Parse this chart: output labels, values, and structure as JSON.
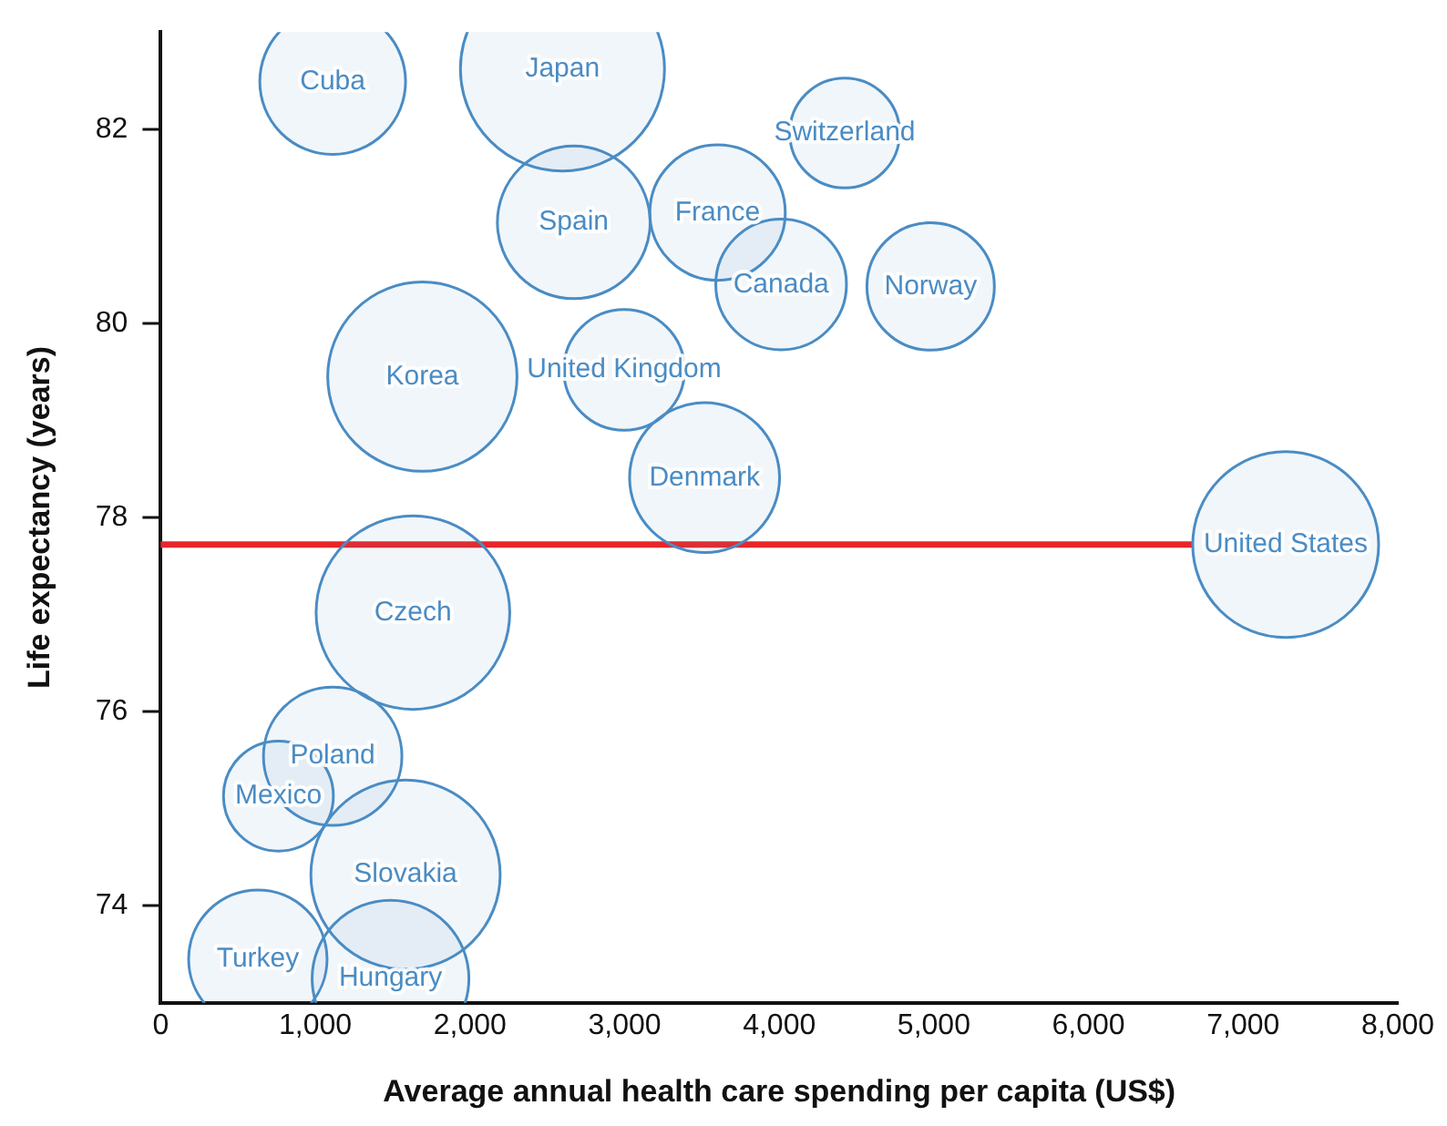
{
  "chart_data": {
    "type": "bubble",
    "xlabel": "Average annual health care spending per capita (US$)",
    "ylabel": "Life expectancy (years)",
    "xlim": [
      0,
      8000
    ],
    "xticks": [
      0,
      {
        "value": 1000,
        "label": "1,000"
      },
      {
        "value": 2000,
        "label": "2,000"
      },
      {
        "value": 3000,
        "label": "3,000"
      },
      {
        "value": 4000,
        "label": "4,000"
      },
      {
        "value": 5000,
        "label": "5,000"
      },
      {
        "value": 6000,
        "label": "6,000"
      },
      {
        "value": 7000,
        "label": "7,000"
      },
      {
        "value": 8000,
        "label": "8,000"
      }
    ],
    "ylim": [
      73,
      83
    ],
    "yticks": [
      74,
      76,
      78,
      80,
      82
    ],
    "grid": false,
    "legend": false,
    "ref_lines": [
      {
        "axis": "y",
        "value": 77.72,
        "color": "#e8262a"
      }
    ],
    "series": [
      {
        "name": "Cuba",
        "color": "#4a8cc4",
        "x": [
          1112
        ],
        "values": [
          82.49
        ],
        "sizes": [
          0.51
        ]
      },
      {
        "name": "Japan",
        "color": "#4a8cc4",
        "x": [
          2598
        ],
        "values": [
          82.62
        ],
        "sizes": [
          1
        ]
      },
      {
        "name": "Switzerland",
        "color": "#4a8cc4",
        "x": [
          4423
        ],
        "values": [
          81.96
        ],
        "sizes": [
          0.29
        ]
      },
      {
        "name": "Spain",
        "color": "#4a8cc4",
        "x": [
          2671
        ],
        "values": [
          81.04
        ],
        "sizes": [
          0.56
        ]
      },
      {
        "name": "France",
        "color": "#4a8cc4",
        "x": [
          3601
        ],
        "values": [
          81.14
        ],
        "sizes": [
          0.44
        ]
      },
      {
        "name": "Canada",
        "color": "#4a8cc4",
        "x": [
          4012
        ],
        "values": [
          80.4
        ],
        "sizes": [
          0.41
        ]
      },
      {
        "name": "Norway",
        "color": "#4a8cc4",
        "x": [
          4979
        ],
        "values": [
          80.38
        ],
        "sizes": [
          0.39
        ]
      },
      {
        "name": "Korea",
        "color": "#4a8cc4",
        "x": [
          1692
        ],
        "values": [
          79.45
        ],
        "sizes": [
          0.86
        ]
      },
      {
        "name": "United Kingdom",
        "color": "#4a8cc4",
        "x": [
          2997
        ],
        "values": [
          79.52
        ],
        "sizes": [
          0.35
        ]
      },
      {
        "name": "Denmark",
        "color": "#4a8cc4",
        "x": [
          3517
        ],
        "values": [
          78.41
        ],
        "sizes": [
          0.54
        ]
      },
      {
        "name": "United States",
        "color": "#4a8cc4",
        "x": [
          7275
        ],
        "values": [
          77.72
        ],
        "sizes": [
          0.83
        ]
      },
      {
        "name": "Czech",
        "color": "#4a8cc4",
        "x": [
          1631
        ],
        "values": [
          77.02
        ],
        "sizes": [
          0.9
        ]
      },
      {
        "name": "Poland",
        "color": "#4a8cc4",
        "x": [
          1112
        ],
        "values": [
          75.54
        ],
        "sizes": [
          0.46
        ]
      },
      {
        "name": "Mexico",
        "color": "#4a8cc4",
        "x": [
          761
        ],
        "values": [
          75.13
        ],
        "sizes": [
          0.29
        ]
      },
      {
        "name": "Slovakia",
        "color": "#4a8cc4",
        "x": [
          1583
        ],
        "values": [
          74.32
        ],
        "sizes": [
          0.86
        ]
      },
      {
        "name": "Turkey",
        "color": "#4a8cc4",
        "x": [
          628
        ],
        "values": [
          73.45
        ],
        "sizes": [
          0.46
        ]
      },
      {
        "name": "Hungary",
        "color": "#4a8cc4",
        "x": [
          1486
        ],
        "values": [
          73.25
        ],
        "sizes": [
          0.59
        ]
      }
    ]
  }
}
